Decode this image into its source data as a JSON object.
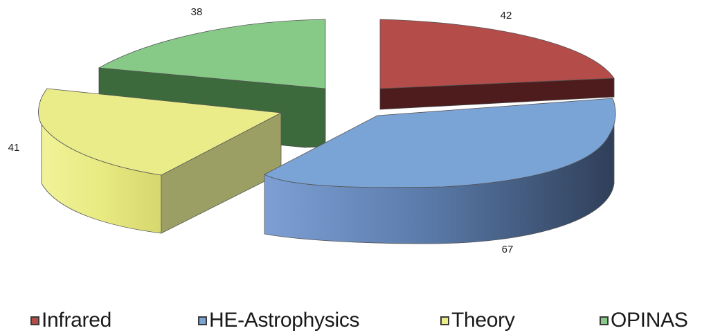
{
  "chart_data": {
    "type": "pie",
    "style": "3d-exploded",
    "categories": [
      "Infrared",
      "HE-Astrophysics",
      "Theory",
      "OPINAS"
    ],
    "values": [
      42,
      67,
      41,
      38
    ],
    "colors": [
      "#b44c4a",
      "#7aa3d6",
      "#e6e87c",
      "#87c987"
    ],
    "legend": {
      "placement": "bottom",
      "entries": [
        "Infrared",
        "HE-Astrophysics",
        "Theory",
        "OPINAS"
      ]
    },
    "data_labels": [
      "42",
      "67",
      "41",
      "38"
    ]
  }
}
